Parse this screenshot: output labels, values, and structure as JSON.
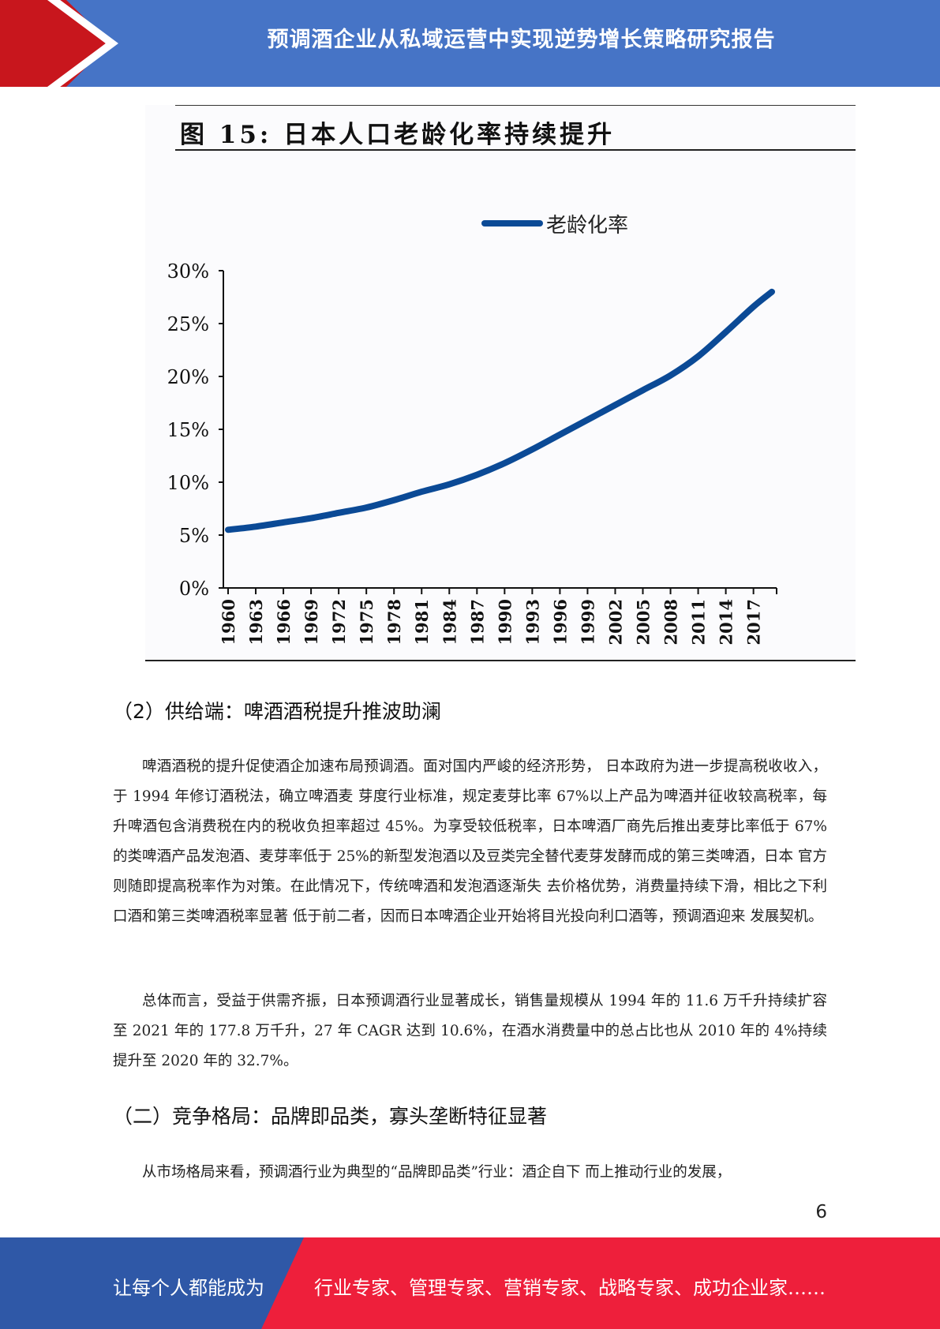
{
  "header": {
    "title": "预调酒企业从私域运营中实现逆势增长策略研究报告"
  },
  "figure": {
    "title": "图 15:  日本人口老龄化率持续提升"
  },
  "chart_data": {
    "type": "line",
    "legend": "老龄化率",
    "legend_position": "top",
    "grid": false,
    "x_ticks": [
      "1960",
      "1963",
      "1966",
      "1969",
      "1972",
      "1975",
      "1978",
      "1981",
      "1984",
      "1987",
      "1990",
      "1993",
      "1996",
      "1999",
      "2002",
      "2005",
      "2008",
      "2011",
      "2014",
      "2017"
    ],
    "y_ticks": [
      "30%",
      "25%",
      "20%",
      "15%",
      "10%",
      "5%",
      "0%"
    ],
    "ylim": [
      0,
      30
    ],
    "xlim": [
      1960,
      2019
    ],
    "series": [
      {
        "name": "老龄化率",
        "color": "#0b4a96",
        "x": [
          1960,
          1963,
          1966,
          1969,
          1972,
          1975,
          1978,
          1981,
          1984,
          1987,
          1990,
          1993,
          1996,
          1999,
          2002,
          2005,
          2008,
          2011,
          2014,
          2017,
          2019
        ],
        "y": [
          5.5,
          5.8,
          6.2,
          6.6,
          7.1,
          7.6,
          8.3,
          9.1,
          9.8,
          10.7,
          11.8,
          13.1,
          14.5,
          15.9,
          17.3,
          18.7,
          20.1,
          21.9,
          24.2,
          26.6,
          28.0
        ]
      }
    ]
  },
  "section1": {
    "heading": "（2）供给端：啤酒酒税提升推波助澜",
    "paragraphs": [
      "啤酒酒税的提升促使酒企加速布局预调酒。面对国内严峻的经济形势，  日本政府为进一步提高税收收入，于 1994 年修订酒税法，确立啤酒麦 芽度行业标准，规定麦芽比率 67%以上产品为啤酒并征收较高税率，每 升啤酒包含消费税在内的税收负担率超过 45%。为享受较低税率，日本啤酒厂商先后推出麦芽比率低于 67%的类啤酒产品发泡酒、麦芽率低于 25%的新型发泡酒以及豆类完全替代麦芽发酵而成的第三类啤酒，日本 官方则随即提高税率作为对策。在此情况下，传统啤酒和发泡酒逐渐失 去价格优势，消费量持续下滑，相比之下利口酒和第三类啤酒税率显著 低于前二者，因而日本啤酒企业开始将目光投向利口酒等，预调酒迎来 发展契机。",
      "总体而言，受益于供需齐振，日本预调酒行业显著成长，销售量规模从 1994 年的 11.6 万千升持续扩容至 2021 年的 177.8 万千升，27 年 CAGR 达到 10.6%，在酒水消费量中的总占比也从 2010 年的 4%持续提升至 2020 年的 32.7%。"
    ]
  },
  "section2": {
    "heading": "（二）竞争格局：品牌即品类，寡头垄断特征显著",
    "paragraph": "从市场格局来看，预调酒行业为典型的“品牌即品类”行业：酒企自下 而上推动行业的发展，"
  },
  "page_number": "6",
  "footer": {
    "left": "让每个人都能成为",
    "right": "行业专家、管理专家、营销专家、战略专家、成功企业家……"
  }
}
